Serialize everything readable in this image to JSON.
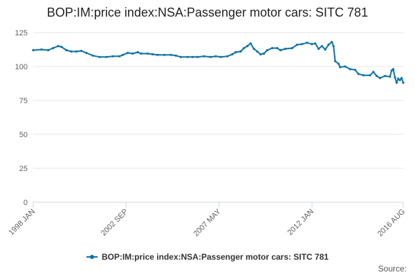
{
  "colors": {
    "series": "#0076B6",
    "grid": "#e6e6e6",
    "axis": "#ccd6eb"
  },
  "chart_data": {
    "type": "line",
    "title": "BOP:IM:price index:NSA:Passenger motor cars: SITC 781",
    "xlabel": "",
    "ylabel": "",
    "ylim": [
      0,
      125
    ],
    "yticks": [
      0,
      25,
      50,
      75,
      100,
      125
    ],
    "grid": true,
    "legend_position": "bottom",
    "x_range": [
      "1998 JAN",
      "2016 AUG"
    ],
    "xtick_labels": [
      "1998 JAN",
      "2002 SEP",
      "2007 MAY",
      "2012 JAN",
      "2016 AUG"
    ],
    "x_label_format": "YYYY MON",
    "series": [
      {
        "name": "BOP:IM:price index:NSA:Passenger motor cars: SITC 781",
        "points": [
          [
            "1998-01",
            112
          ],
          [
            "1998-06",
            112.5
          ],
          [
            "1998-10",
            112
          ],
          [
            "1999-01",
            113.5
          ],
          [
            "1999-04",
            115
          ],
          [
            "1999-06",
            114.5
          ],
          [
            "1999-09",
            112
          ],
          [
            "1999-12",
            111
          ],
          [
            "2000-03",
            111
          ],
          [
            "2000-06",
            111.5
          ],
          [
            "2000-09",
            110
          ],
          [
            "2001-01",
            108
          ],
          [
            "2001-05",
            107
          ],
          [
            "2001-09",
            107
          ],
          [
            "2002-01",
            107.5
          ],
          [
            "2002-05",
            107.5
          ],
          [
            "2002-07",
            108.5
          ],
          [
            "2002-10",
            110
          ],
          [
            "2003-01",
            109.5
          ],
          [
            "2003-04",
            110.5
          ],
          [
            "2003-06",
            109.5
          ],
          [
            "2003-10",
            109.5
          ],
          [
            "2004-01",
            109
          ],
          [
            "2004-04",
            108.5
          ],
          [
            "2004-08",
            108.5
          ],
          [
            "2004-12",
            108.5
          ],
          [
            "2005-03",
            108
          ],
          [
            "2005-06",
            107
          ],
          [
            "2005-10",
            107
          ],
          [
            "2006-01",
            107
          ],
          [
            "2006-04",
            107
          ],
          [
            "2006-08",
            107.5
          ],
          [
            "2006-12",
            107
          ],
          [
            "2007-03",
            107.5
          ],
          [
            "2007-06",
            107
          ],
          [
            "2007-10",
            107.5
          ],
          [
            "2008-01",
            109
          ],
          [
            "2008-03",
            110.5
          ],
          [
            "2008-06",
            111
          ],
          [
            "2008-08",
            113.5
          ],
          [
            "2008-10",
            115
          ],
          [
            "2008-12",
            117
          ],
          [
            "2009-02",
            113
          ],
          [
            "2009-04",
            111
          ],
          [
            "2009-06",
            109
          ],
          [
            "2009-08",
            109.5
          ],
          [
            "2009-10",
            112
          ],
          [
            "2010-01",
            113.5
          ],
          [
            "2010-04",
            113.5
          ],
          [
            "2010-06",
            112
          ],
          [
            "2010-09",
            113
          ],
          [
            "2011-01",
            113.5
          ],
          [
            "2011-04",
            116
          ],
          [
            "2011-07",
            116.5
          ],
          [
            "2011-10",
            117.5
          ],
          [
            "2012-01",
            116.5
          ],
          [
            "2012-03",
            117
          ],
          [
            "2012-05",
            113
          ],
          [
            "2012-07",
            115
          ],
          [
            "2012-09",
            112.5
          ],
          [
            "2012-11",
            116
          ],
          [
            "2013-01",
            118
          ],
          [
            "2013-02",
            115
          ],
          [
            "2013-03",
            104
          ],
          [
            "2013-05",
            102
          ],
          [
            "2013-06",
            99.5
          ],
          [
            "2013-09",
            100
          ],
          [
            "2013-12",
            98
          ],
          [
            "2014-03",
            97.5
          ],
          [
            "2014-05",
            94.5
          ],
          [
            "2014-08",
            93.5
          ],
          [
            "2014-12",
            93.5
          ],
          [
            "2015-02",
            96
          ],
          [
            "2015-04",
            93
          ],
          [
            "2015-06",
            91.5
          ],
          [
            "2015-09",
            93
          ],
          [
            "2015-12",
            92.5
          ],
          [
            "2016-01",
            97
          ],
          [
            "2016-02",
            98
          ],
          [
            "2016-03",
            92
          ],
          [
            "2016-04",
            88
          ],
          [
            "2016-05",
            91
          ],
          [
            "2016-06",
            90
          ],
          [
            "2016-07",
            91.5
          ],
          [
            "2016-08",
            88
          ]
        ]
      }
    ]
  },
  "legend": {
    "label": "BOP:IM:price index:NSA:Passenger motor cars: SITC 781"
  },
  "source": {
    "label": "Source:"
  }
}
